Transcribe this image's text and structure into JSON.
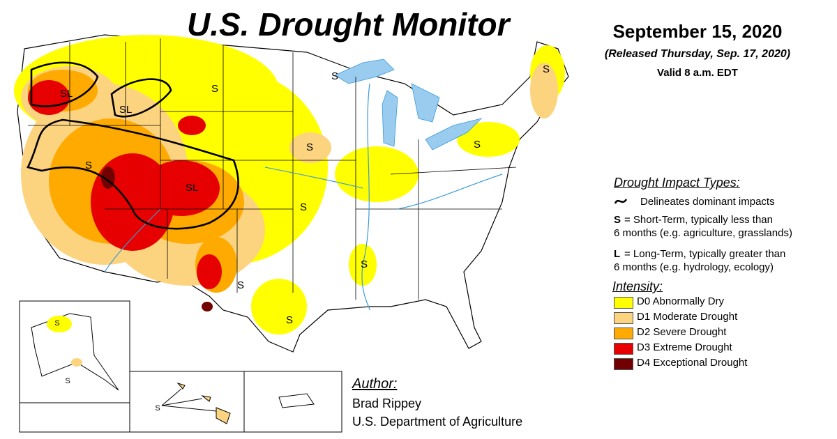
{
  "header": {
    "title": "U.S. Drought Monitor",
    "date": "September 15, 2020",
    "released": "(Released Thursday, Sep. 17, 2020)",
    "valid": "Valid 8 a.m. EDT"
  },
  "impact_types": {
    "heading": "Drought Impact Types:",
    "line_note": "Delineates dominant impacts",
    "items": [
      {
        "key": "S",
        "lines": [
          "= Short-Term, typically less than",
          "6 months (e.g. agriculture, grasslands)"
        ]
      },
      {
        "key": "L",
        "lines": [
          "= Long-Term, typically greater than",
          "6 months (e.g. hydrology, ecology)"
        ]
      }
    ]
  },
  "intensity": {
    "heading": "Intensity:",
    "items": [
      {
        "label": "D0 Abnormally Dry",
        "color": "#ffff00"
      },
      {
        "label": "D1 Moderate Drought",
        "color": "#fcd37f"
      },
      {
        "label": "D2 Severe Drought",
        "color": "#ffaa00"
      },
      {
        "label": "D3 Extreme Drought",
        "color": "#e60000"
      },
      {
        "label": "D4 Exceptional Drought",
        "color": "#730000"
      }
    ]
  },
  "author": {
    "heading": "Author:",
    "name": "Brad Rippey",
    "agency": "U.S. Department of Agriculture"
  },
  "map_labels": [
    "SL",
    "SL",
    "S",
    "S",
    "SL",
    "S",
    "S",
    "S",
    "S",
    "S",
    "S",
    "S",
    "S",
    "S",
    "S",
    "S"
  ]
}
